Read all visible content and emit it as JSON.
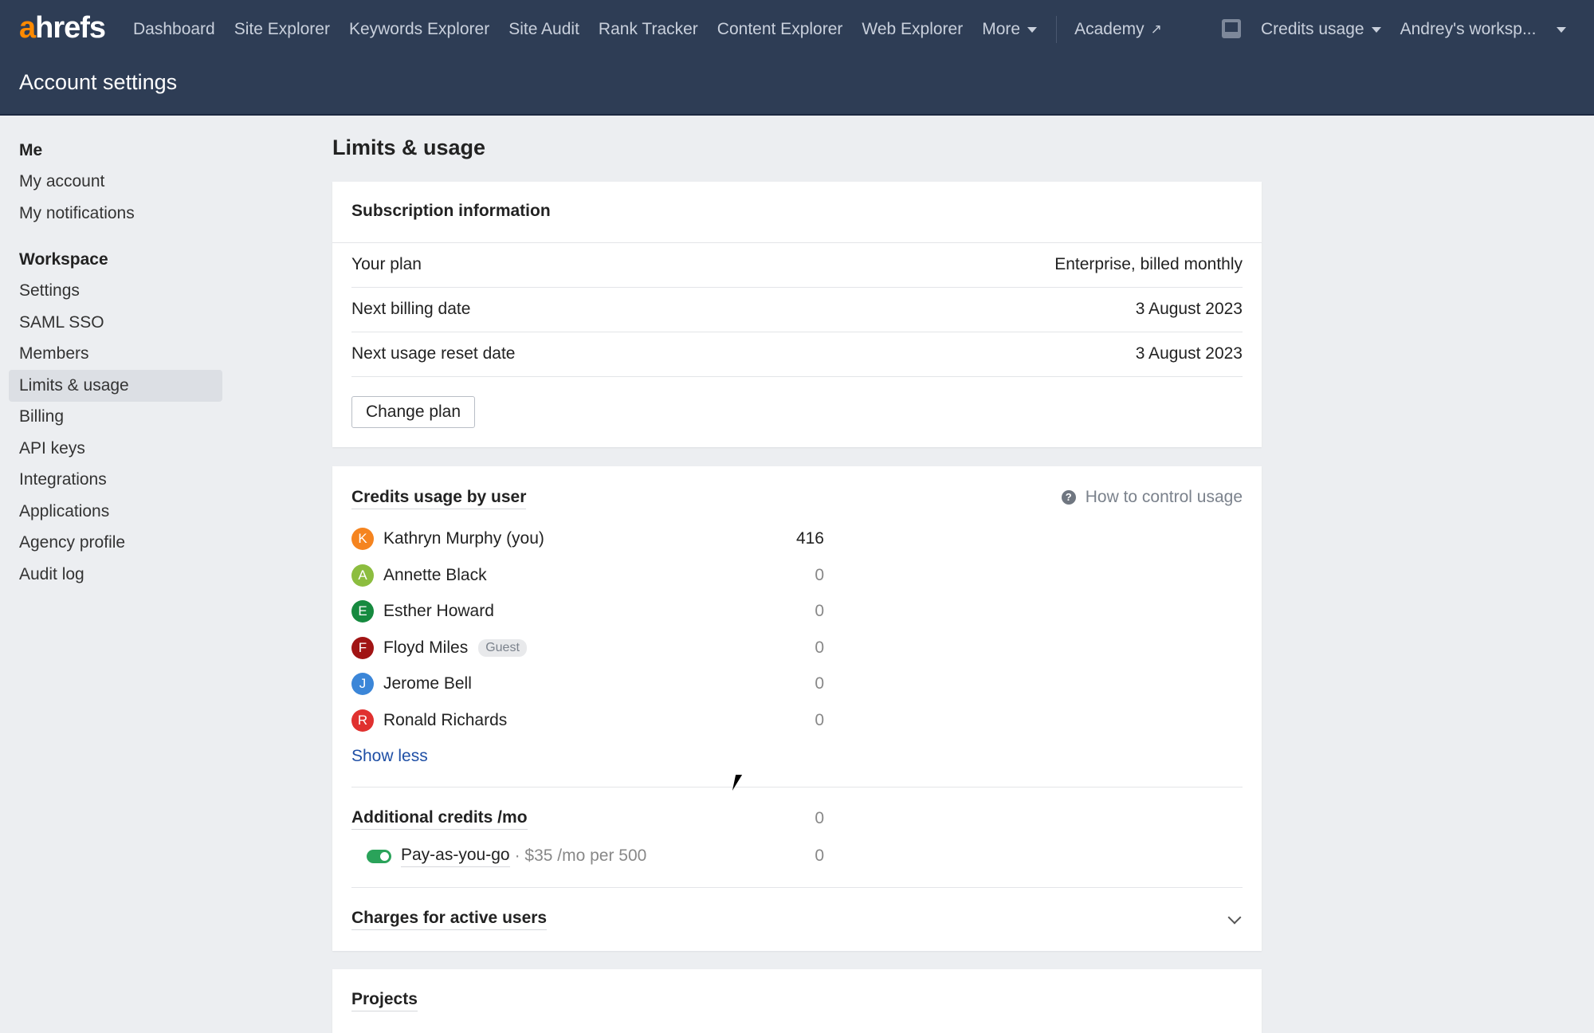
{
  "topbar": {
    "logo": {
      "accent": "a",
      "rest": "hrefs"
    },
    "nav": [
      "Dashboard",
      "Site Explorer",
      "Keywords Explorer",
      "Site Audit",
      "Rank Tracker",
      "Content Explorer",
      "Web Explorer",
      "More"
    ],
    "academy": "Academy",
    "credits": "Credits usage",
    "workspace": "Andrey's worksp...",
    "page_title": "Account settings"
  },
  "sidebar": {
    "me_heading": "Me",
    "me_items": [
      "My account",
      "My notifications"
    ],
    "workspace_heading": "Workspace",
    "workspace_items": [
      "Settings",
      "SAML SSO",
      "Members",
      "Limits & usage",
      "Billing",
      "API keys",
      "Integrations",
      "Applications",
      "Agency profile",
      "Audit log"
    ],
    "selected": "Limits & usage"
  },
  "main": {
    "title": "Limits & usage",
    "subscription": {
      "title": "Subscription information",
      "rows": [
        {
          "label": "Your plan",
          "value": "Enterprise, billed monthly"
        },
        {
          "label": "Next billing date",
          "value": "3 August 2023"
        },
        {
          "label": "Next usage reset date",
          "value": "3 August 2023"
        }
      ],
      "change_plan": "Change plan"
    },
    "credits": {
      "title": "Credits usage by user",
      "help": "How to control usage",
      "users": [
        {
          "initial": "K",
          "name": "Kathryn Murphy (you)",
          "value": "416",
          "color": "#f5841f"
        },
        {
          "initial": "A",
          "name": "Annette Black",
          "value": "0",
          "color": "#8cbd3f"
        },
        {
          "initial": "E",
          "name": "Esther Howard",
          "value": "0",
          "color": "#168a3f"
        },
        {
          "initial": "F",
          "name": "Floyd Miles",
          "badge": "Guest",
          "value": "0",
          "color": "#a11414"
        },
        {
          "initial": "J",
          "name": "Jerome Bell",
          "value": "0",
          "color": "#3b86d8"
        },
        {
          "initial": "R",
          "name": "Ronald Richards",
          "value": "0",
          "color": "#e0312f"
        }
      ],
      "show_less": "Show less",
      "additional": {
        "label": "Additional credits /mo",
        "value": "0"
      },
      "payg": {
        "label": "Pay-as-you-go",
        "detail": "· $35 /mo per 500",
        "value": "0",
        "enabled": true
      },
      "charges": "Charges for active users"
    },
    "projects": {
      "title": "Projects"
    }
  }
}
